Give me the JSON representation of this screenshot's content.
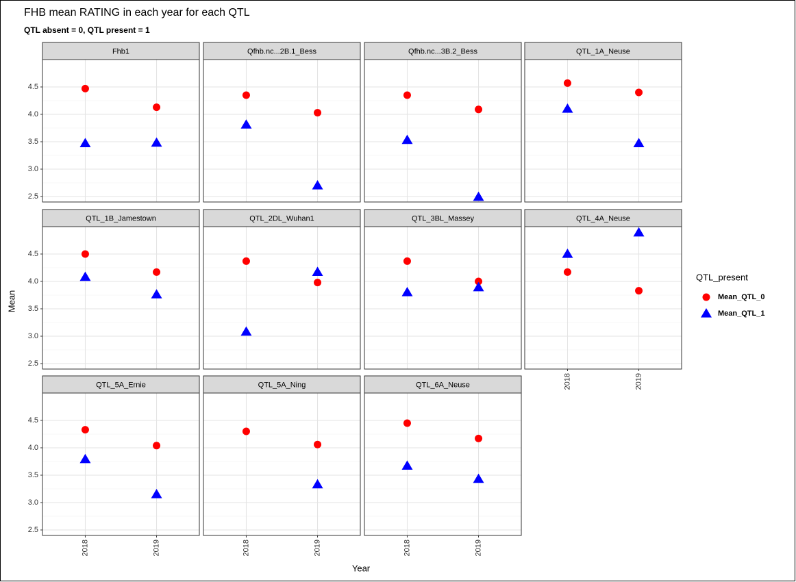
{
  "chart_data": {
    "type": "scatter",
    "title": "FHB mean RATING in each year for each QTL",
    "subtitle": "QTL absent = 0, QTL present = 1",
    "x_label": "Year",
    "y_label": "Mean",
    "legend_title": "QTL_present",
    "legend_position": "right",
    "grid": true,
    "categories": [
      "2018",
      "2019"
    ],
    "ylim": [
      2.4,
      5.0
    ],
    "yticks": [
      2.5,
      {
        "value": 3,
        "label": "3.0"
      },
      3.5,
      {
        "value": 4,
        "label": "4.0"
      },
      4.5
    ],
    "series": [
      {
        "name": "Mean_QTL_0",
        "color": "#ff0000",
        "marker": "circle"
      },
      {
        "name": "Mean_QTL_1",
        "color": "#0000ff",
        "marker": "triangle"
      }
    ],
    "facets": [
      {
        "title": "Fhb1",
        "series": [
          {
            "values": [
              4.47,
              4.13
            ]
          },
          {
            "values": [
              3.47,
              3.48
            ]
          }
        ]
      },
      {
        "title": "Qfhb.nc...2B.1_Bess",
        "series": [
          {
            "values": [
              4.35,
              4.03
            ]
          },
          {
            "values": [
              3.81,
              2.7
            ]
          }
        ]
      },
      {
        "title": "Qfhb.nc...3B.2_Bess",
        "series": [
          {
            "values": [
              4.35,
              4.09
            ]
          },
          {
            "values": [
              3.53,
              2.49
            ]
          }
        ]
      },
      {
        "title": "QTL_1A_Neuse",
        "series": [
          {
            "values": [
              4.57,
              4.4
            ]
          },
          {
            "values": [
              4.1,
              3.47
            ]
          }
        ]
      },
      {
        "title": "QTL_1B_Jamestown",
        "series": [
          {
            "values": [
              4.5,
              4.17
            ]
          },
          {
            "values": [
              4.08,
              3.76
            ]
          }
        ]
      },
      {
        "title": "QTL_2DL_Wuhan1",
        "series": [
          {
            "values": [
              4.37,
              3.98
            ]
          },
          {
            "values": [
              3.08,
              4.17
            ]
          }
        ]
      },
      {
        "title": "QTL_3BL_Massey",
        "series": [
          {
            "values": [
              4.37,
              4.0
            ]
          },
          {
            "values": [
              3.8,
              3.89
            ]
          }
        ]
      },
      {
        "title": "QTL_4A_Neuse",
        "series": [
          {
            "values": [
              4.17,
              3.83
            ]
          },
          {
            "values": [
              4.5,
              4.89
            ]
          }
        ]
      },
      {
        "title": "QTL_5A_Ernie",
        "series": [
          {
            "values": [
              4.33,
              4.04
            ]
          },
          {
            "values": [
              3.79,
              3.15
            ]
          }
        ]
      },
      {
        "title": "QTL_5A_Ning",
        "series": [
          {
            "values": [
              4.3,
              4.06
            ]
          },
          {
            "values": [
              null,
              3.33
            ]
          }
        ]
      },
      {
        "title": "QTL_6A_Neuse",
        "series": [
          {
            "values": [
              4.45,
              4.17
            ]
          },
          {
            "values": [
              3.67,
              3.43
            ]
          }
        ]
      }
    ]
  }
}
